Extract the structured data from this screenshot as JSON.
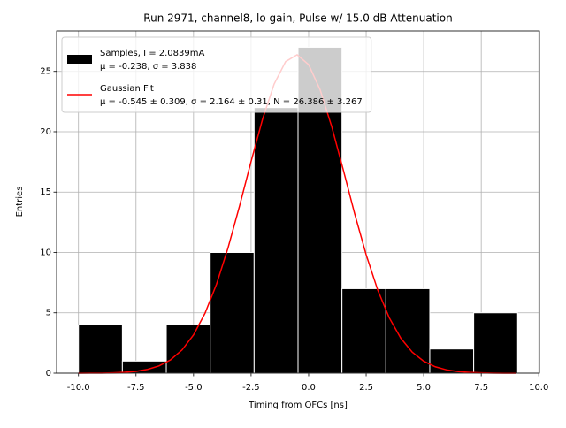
{
  "chart_data": {
    "type": "histogram",
    "title": "Run 2971, channel8, lo gain, Pulse w/ 15.0 dB Attenuation",
    "x_label": "Timing from OFCs [ns]",
    "y_label": "Entries",
    "grid": true,
    "legend": "upper left",
    "bins": [
      -10.0,
      -8.092,
      -6.184,
      -4.276,
      -2.368,
      -0.46,
      1.448,
      3.356,
      5.264,
      7.172,
      9.08
    ],
    "series": [
      {
        "name": "Samples, I = 2.0839mA",
        "stats": "μ = -0.238, σ = 3.838",
        "color": "#000000",
        "values": [
          4,
          1,
          4,
          10,
          22,
          27,
          7,
          7,
          2,
          5
        ]
      },
      {
        "name": "Gaussian Fit",
        "stats": "μ = -0.545 ± 0.309, σ = 2.164 ± 0.31, N = 26.386 ± 3.267",
        "color": "#ff0000",
        "type": "line",
        "x": [
          -10,
          -9.5,
          -9,
          -8.5,
          -8,
          -7.5,
          -7,
          -6.5,
          -6,
          -5.5,
          -5,
          -4.5,
          -4,
          -3.5,
          -3,
          -2.5,
          -2,
          -1.5,
          -1,
          -0.5,
          0,
          0.5,
          1,
          1.5,
          2,
          2.5,
          3,
          3.5,
          4,
          4.5,
          5,
          5.5,
          6,
          6.5,
          7,
          7.5,
          8,
          8.5,
          9
        ],
        "values": [
          0.0,
          0.01,
          0.01,
          0.03,
          0.07,
          0.15,
          0.31,
          0.6,
          1.1,
          1.92,
          3.17,
          4.97,
          7.38,
          10.39,
          13.86,
          17.54,
          21.05,
          23.94,
          25.81,
          26.38,
          25.56,
          23.48,
          20.45,
          16.88,
          13.21,
          9.81,
          6.9,
          4.6,
          2.91,
          1.74,
          0.99,
          0.53,
          0.27,
          0.13,
          0.06,
          0.03,
          0.01,
          0.0,
          0.0
        ]
      }
    ],
    "xlim": [
      -10.95,
      10.03
    ],
    "ylim": [
      0,
      28.35
    ],
    "xticks": [
      {
        "value": -10,
        "label": "-10.0"
      },
      {
        "value": -7.5,
        "label": "-7.5"
      },
      {
        "value": -5,
        "label": "-5.0"
      },
      {
        "value": -2.5,
        "label": "-2.5"
      },
      {
        "value": 0,
        "label": "0.0"
      },
      {
        "value": 2.5,
        "label": "2.5"
      },
      {
        "value": 5,
        "label": "5.0"
      },
      {
        "value": 7.5,
        "label": "7.5"
      },
      {
        "value": 10,
        "label": "10.0"
      }
    ],
    "yticks": [
      0,
      5,
      10,
      15,
      20,
      25
    ]
  }
}
